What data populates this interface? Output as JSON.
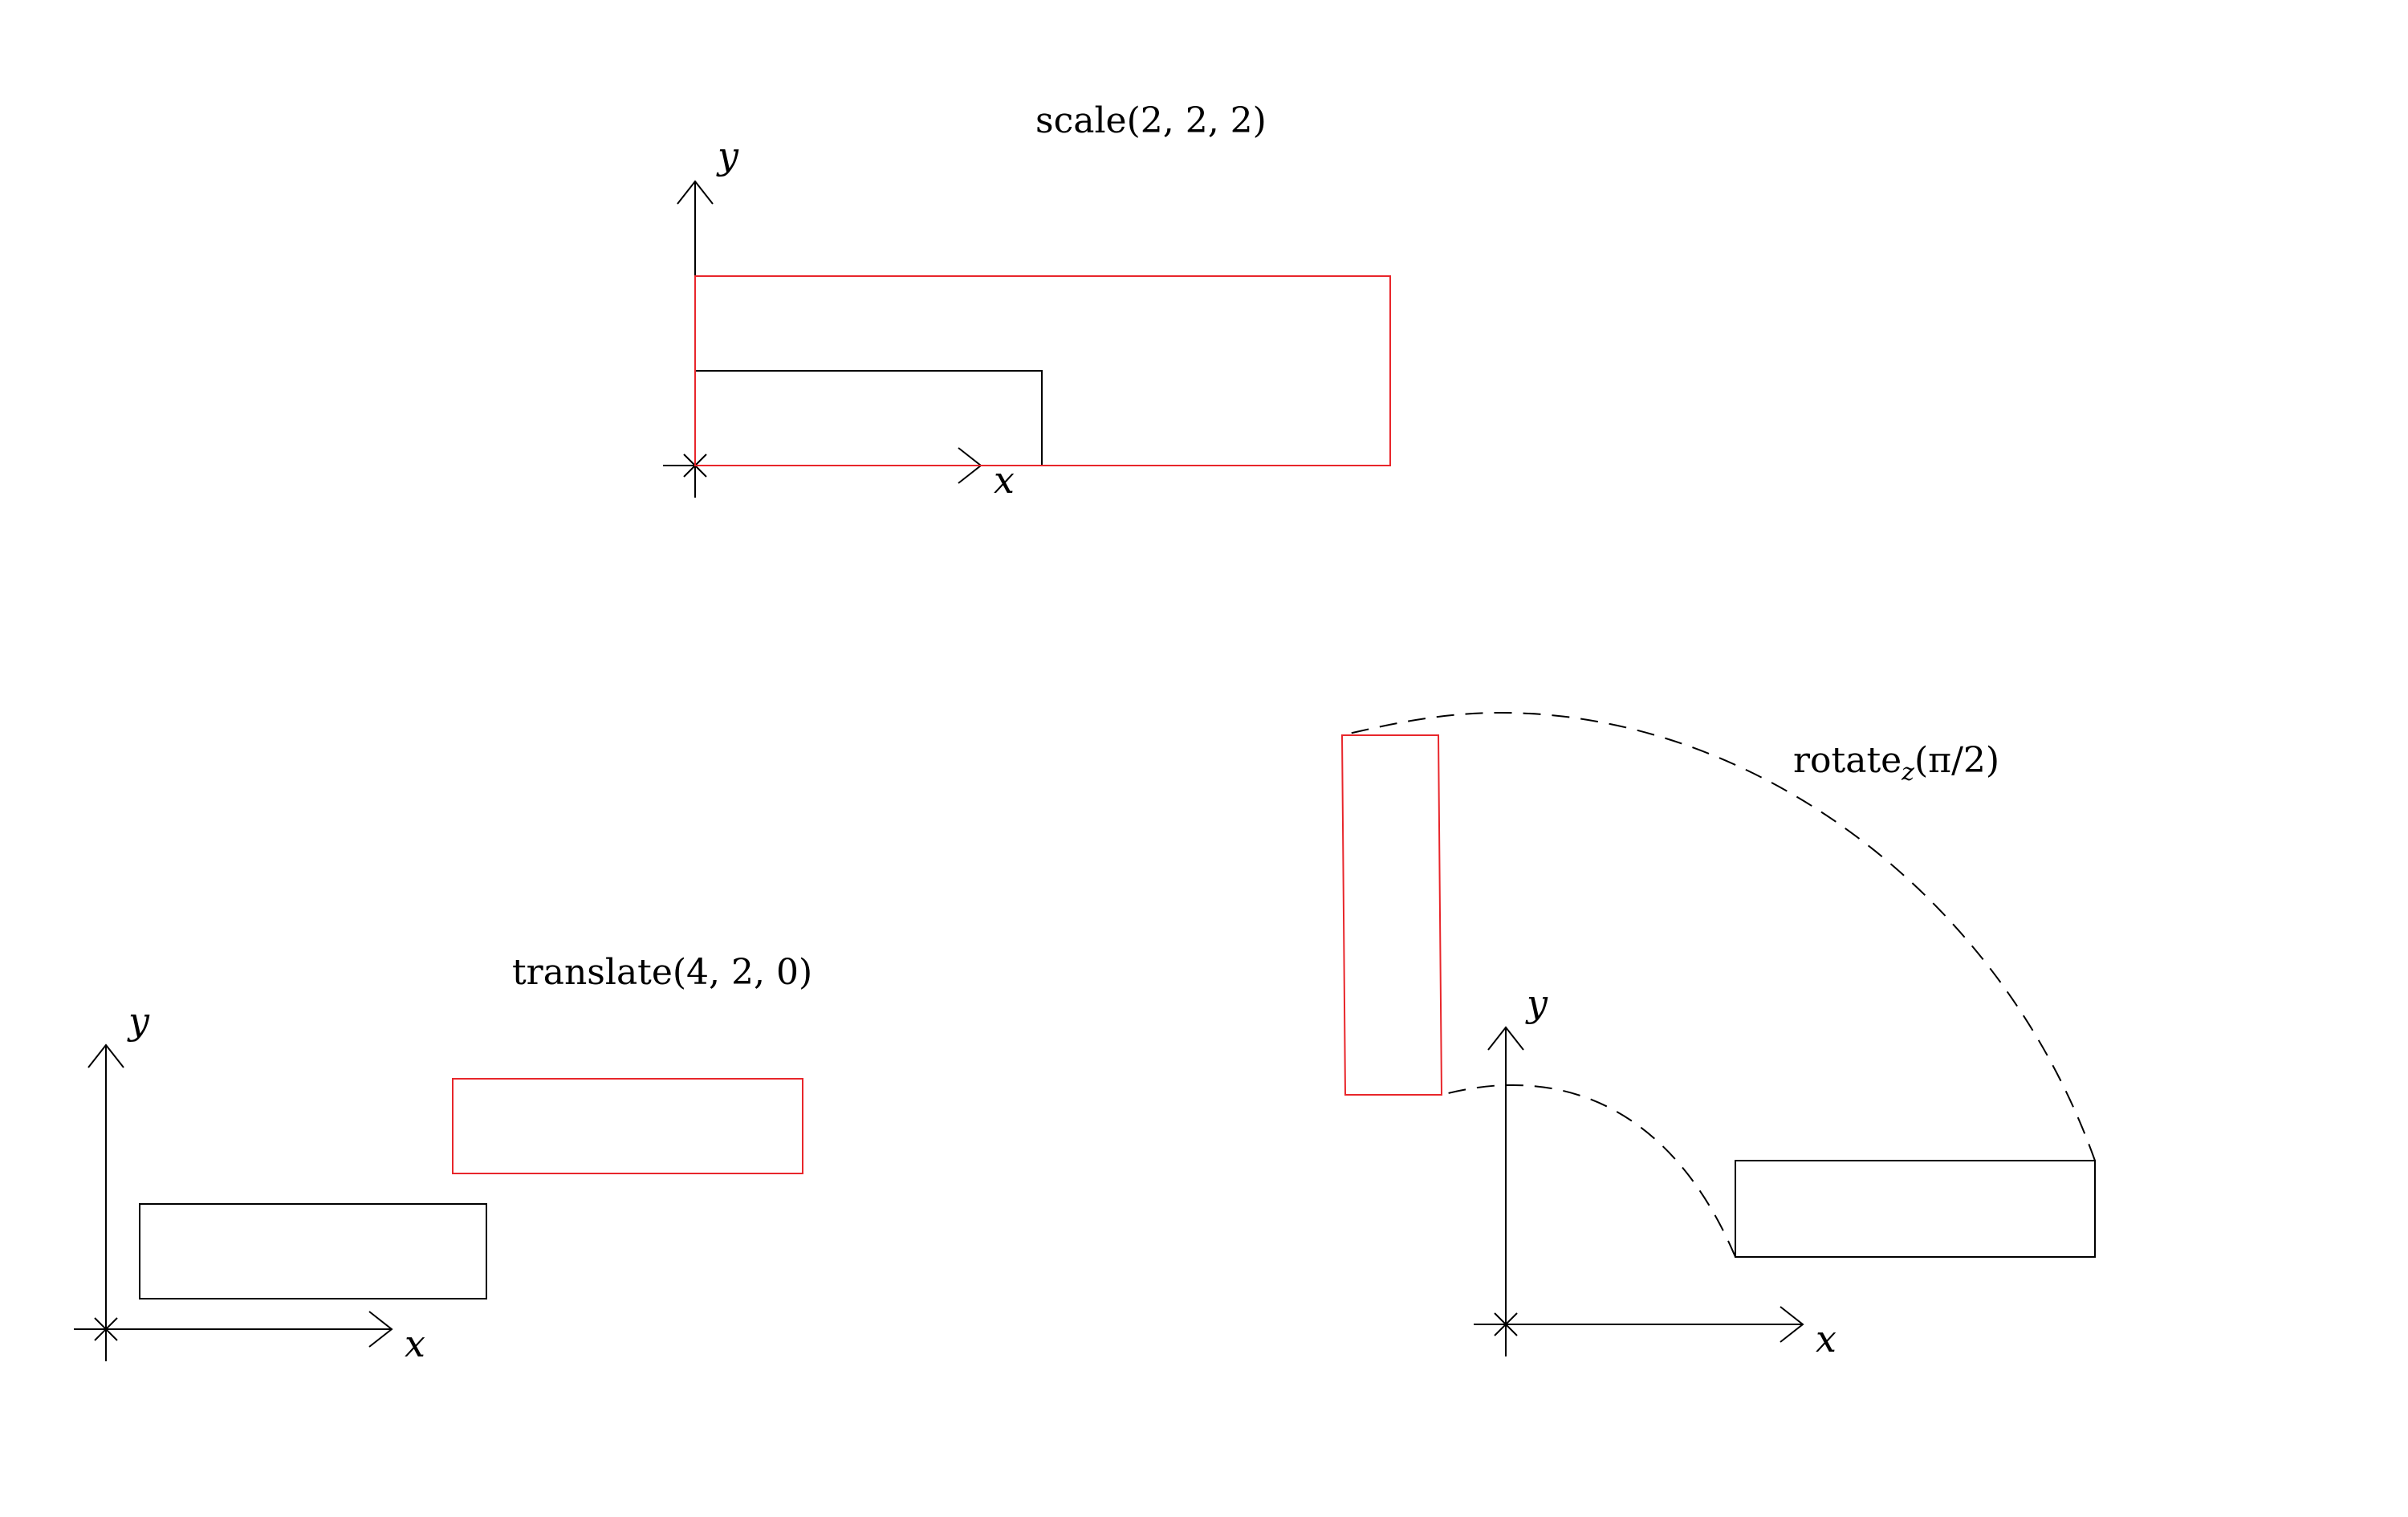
{
  "colors": {
    "original": "#000000",
    "transformed": "#e8262b"
  },
  "panels": {
    "scale": {
      "title": "scale(2, 2, 2)",
      "x_label": "x",
      "y_label": "y"
    },
    "translate": {
      "title": "translate(4, 2, 0)",
      "x_label": "x",
      "y_label": "y"
    },
    "rotate": {
      "title_main": "rotate",
      "title_sub": "z",
      "title_arg": "(π/2)",
      "x_label": "x",
      "y_label": "y"
    }
  }
}
